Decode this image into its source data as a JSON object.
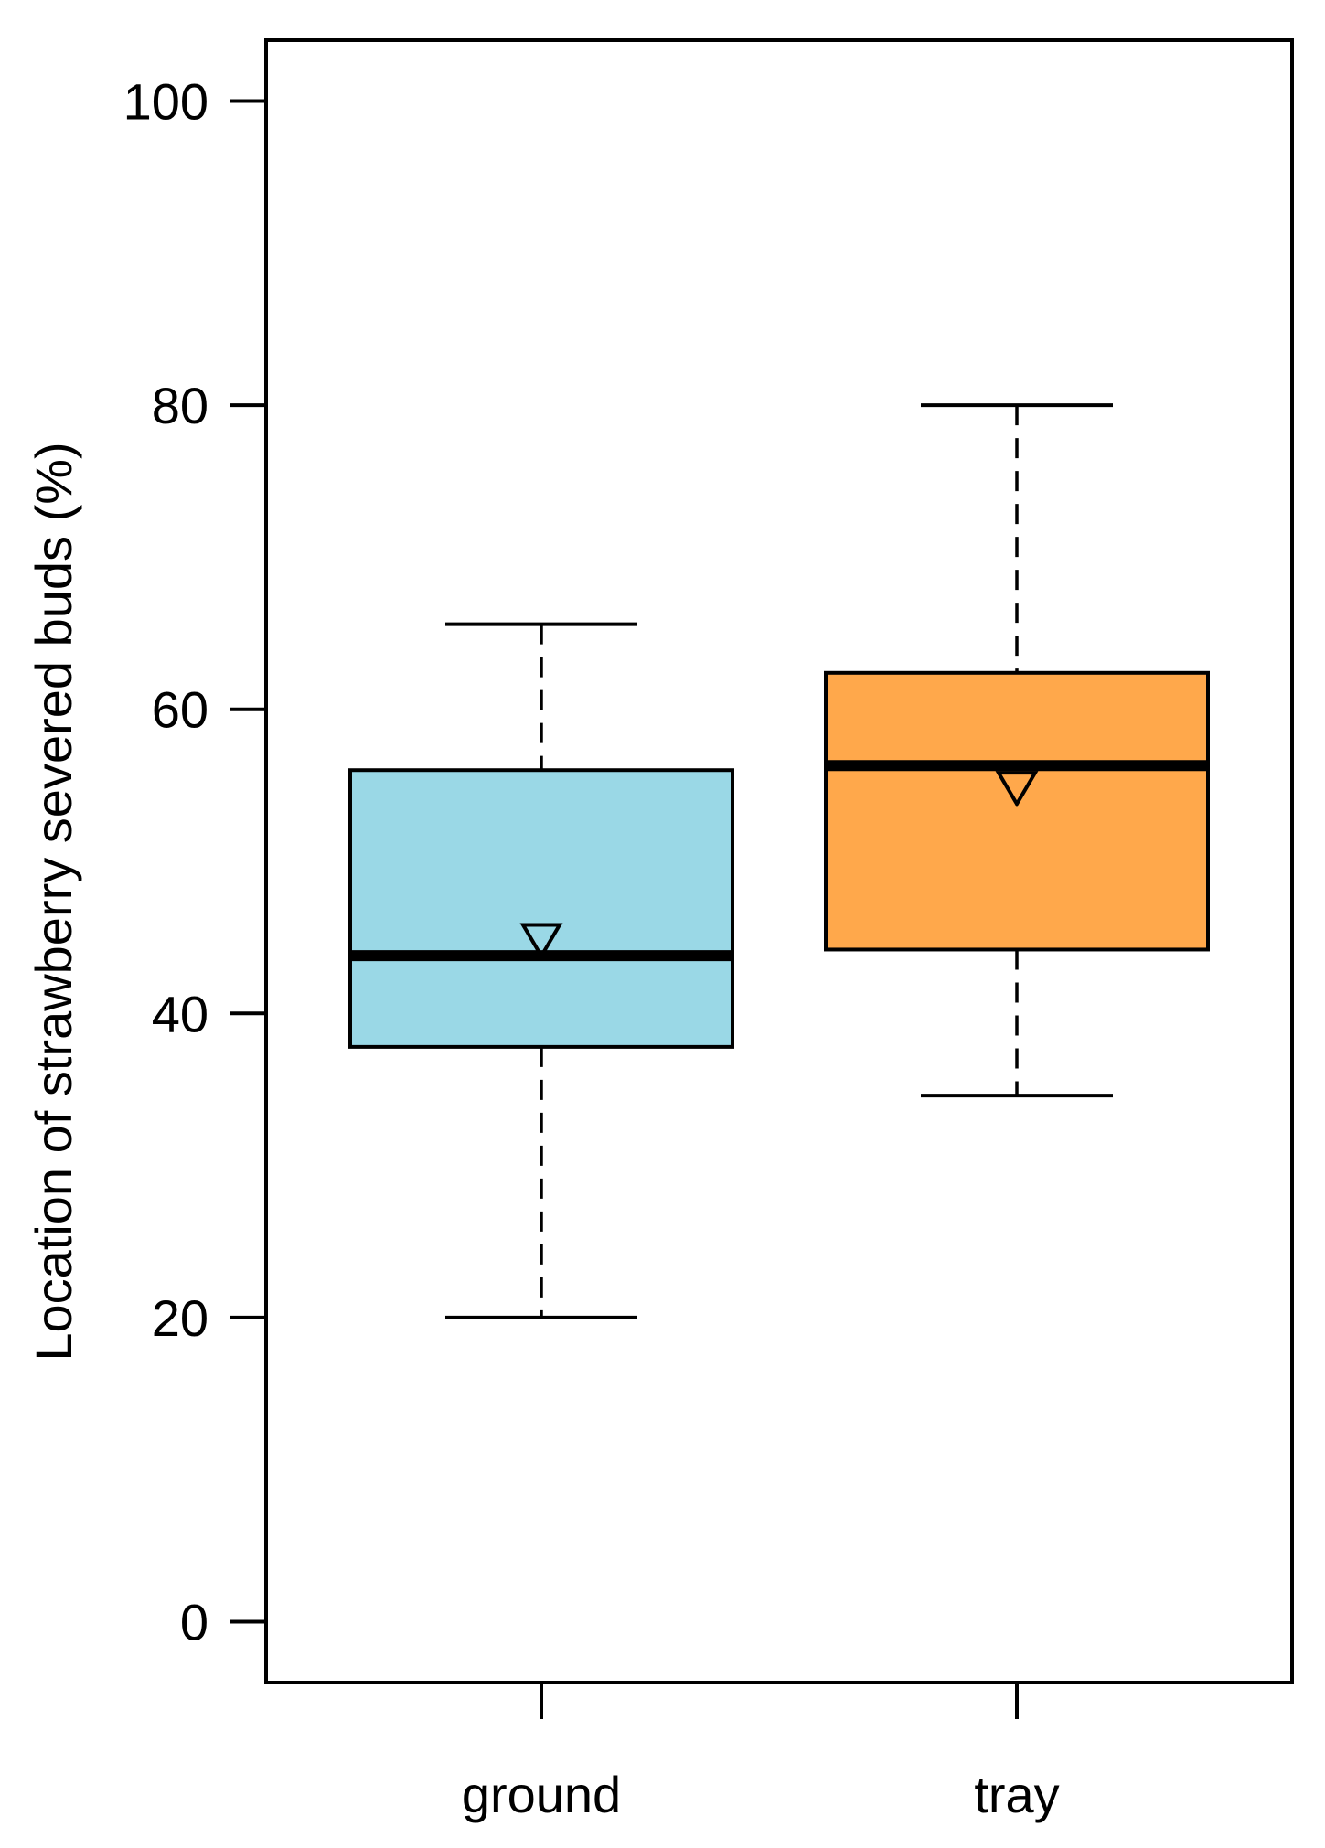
{
  "chart_data": {
    "type": "boxplot",
    "title": "",
    "xlabel": "",
    "ylabel": "Location  of strawberry severed buds (%)",
    "ylim": [
      -4,
      104
    ],
    "yticks": [
      0,
      20,
      40,
      60,
      80,
      100
    ],
    "ytick_labels": [
      "0",
      "20",
      "40",
      "60",
      "80",
      "100"
    ],
    "grid": false,
    "categories": [
      "ground",
      "tray"
    ],
    "boxes": [
      {
        "category": "ground",
        "whisker_low": 20,
        "q1": 37.8,
        "median": 43.8,
        "q3": 56,
        "whisker_high": 65.6,
        "mean": 44.8,
        "color": "#9ad8e6"
      },
      {
        "category": "tray",
        "whisker_low": 34.6,
        "q1": 44.2,
        "median": 56.3,
        "q3": 62.4,
        "whisker_high": 80,
        "mean": 54.8,
        "color": "#ffa84b"
      }
    ]
  }
}
